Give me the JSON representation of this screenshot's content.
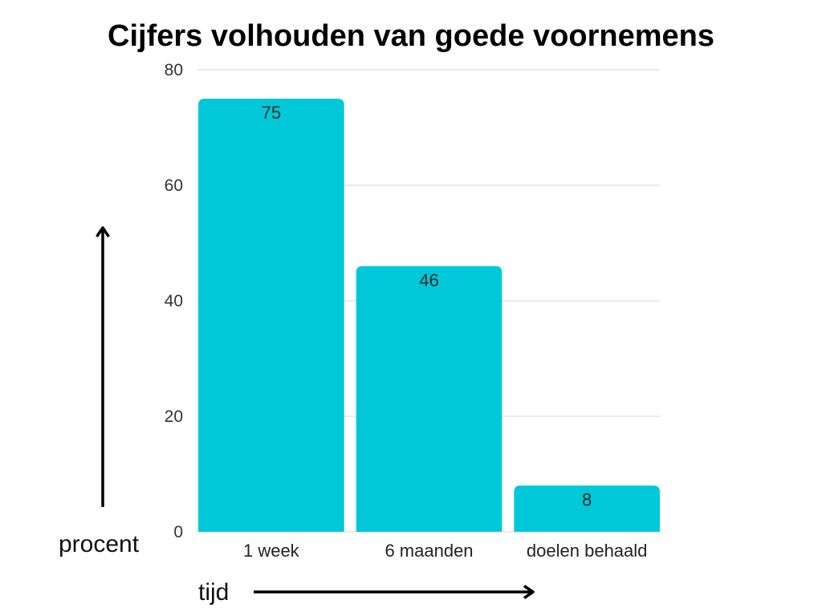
{
  "chart_data": {
    "type": "bar",
    "title": "Cijfers volhouden van goede voornemens",
    "categories": [
      "1 week",
      "6 maanden",
      "doelen behaald"
    ],
    "values": [
      75,
      46,
      8
    ],
    "xlabel": "tijd",
    "ylabel": "procent",
    "ylim": [
      0,
      80
    ],
    "yticks": [
      0,
      20,
      40,
      60,
      80
    ],
    "grid": true,
    "legend": false,
    "data_labels": true
  },
  "colors": {
    "bar": "#00C8D8",
    "grid": "#d6d6d6"
  },
  "icons": {
    "y_axis_arrow": "arrow-up-icon",
    "x_axis_arrow": "arrow-right-icon"
  }
}
